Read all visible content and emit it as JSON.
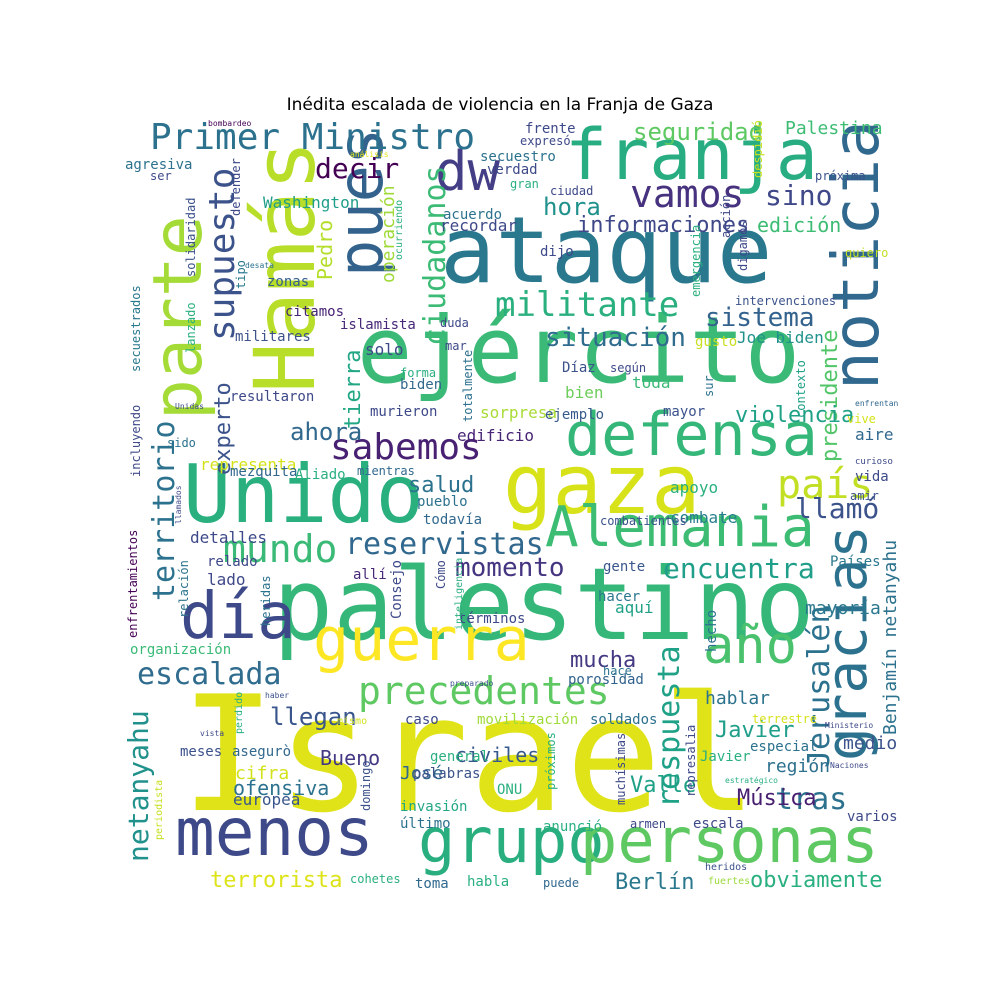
{
  "title": "Inédita escalada de violencia en la Franja de Gaza",
  "words": [
    {
      "text": "Israel",
      "color": "#dfe318"
    },
    {
      "text": "palestino",
      "color": "#35b779"
    },
    {
      "text": "ataque",
      "color": "#2a788e"
    },
    {
      "text": "ejército",
      "color": "#3aba76"
    },
    {
      "text": "Hamás",
      "color": "#b8de29"
    },
    {
      "text": "Unido",
      "color": "#2ab07f"
    },
    {
      "text": "gaza",
      "color": "#d8e219"
    },
    {
      "text": "franja",
      "color": "#27ad81"
    },
    {
      "text": "parte",
      "color": "#a5db36"
    },
    {
      "text": "noticia",
      "color": "#31688e"
    },
    {
      "text": "menos",
      "color": "#3e4989"
    },
    {
      "text": "grupo",
      "color": "#29af7f"
    },
    {
      "text": "personas",
      "color": "#5ec962"
    },
    {
      "text": "defensa",
      "color": "#35b779"
    },
    {
      "text": "guerra",
      "color": "#fde725"
    },
    {
      "text": "Alemania",
      "color": "#3dbc74"
    },
    {
      "text": "gracias",
      "color": "#2c728e"
    },
    {
      "text": "pues",
      "color": "#33638d"
    },
    {
      "text": "día",
      "color": "#3e4989"
    },
    {
      "text": "dw",
      "color": "#433e85"
    },
    {
      "text": "Primer Ministro",
      "color": "#2c728e"
    },
    {
      "text": "año",
      "color": "#4ac16d"
    },
    {
      "text": "sabemos",
      "color": "#482173"
    },
    {
      "text": "precedentes",
      "color": "#5ec962"
    },
    {
      "text": "mundo",
      "color": "#3aba76"
    },
    {
      "text": "país",
      "color": "#c2df23"
    },
    {
      "text": "supuesto",
      "color": "#3b528b"
    },
    {
      "text": "territorio",
      "color": "#2c728e"
    },
    {
      "text": "vamos",
      "color": "#46327e"
    },
    {
      "text": "militante",
      "color": "#2ab07f"
    },
    {
      "text": "escalada",
      "color": "#2f6c8e"
    },
    {
      "text": "reservistas",
      "color": "#31688e"
    },
    {
      "text": "netanyahu",
      "color": "#21918c"
    },
    {
      "text": "encuentra",
      "color": "#1f9e89"
    },
    {
      "text": "ciudadanos",
      "color": "#3bbb75"
    },
    {
      "text": "respuesta",
      "color": "#1fa187"
    },
    {
      "text": "Jerusalén",
      "color": "#2c728e"
    },
    {
      "text": "tras",
      "color": "#2c728e"
    },
    {
      "text": "momento",
      "color": "#453581"
    },
    {
      "text": "decir",
      "color": "#440154"
    },
    {
      "text": "sino",
      "color": "#3f4889"
    },
    {
      "text": "situación",
      "color": "#2f6c8e"
    },
    {
      "text": "sistema",
      "color": "#33638d"
    },
    {
      "text": "llamó",
      "color": "#3b528b"
    },
    {
      "text": "seguridad",
      "color": "#5ec962"
    },
    {
      "text": "experto",
      "color": "#3b528b"
    },
    {
      "text": "presidente",
      "color": "#52c569"
    },
    {
      "text": "ahora",
      "color": "#31688e"
    },
    {
      "text": "llegan",
      "color": "#39568c"
    },
    {
      "text": "informaciones",
      "color": "#3f4889"
    },
    {
      "text": "hora",
      "color": "#21918c"
    },
    {
      "text": "violencia",
      "color": "#1fa187"
    },
    {
      "text": "mucha",
      "color": "#443983"
    },
    {
      "text": "terrorista",
      "color": "#dde318"
    },
    {
      "text": "obviamente",
      "color": "#2ab07f"
    },
    {
      "text": "Berlín",
      "color": "#2a788e"
    },
    {
      "text": "Benjamín netanyahu",
      "color": "#2c728e"
    },
    {
      "text": "Javier",
      "color": "#1f9e89"
    },
    {
      "text": "Música",
      "color": "#481f70"
    },
    {
      "text": "operación",
      "color": "#a0da39"
    },
    {
      "text": "Pedro",
      "color": "#b5de2b"
    },
    {
      "text": "Palestina",
      "color": "#3dbc74"
    },
    {
      "text": "salud",
      "color": "#2c728e"
    },
    {
      "text": "edición",
      "color": "#3dbc74"
    },
    {
      "text": "Washington",
      "color": "#1f9e89"
    },
    {
      "text": "tierra",
      "color": "#22a785"
    },
    {
      "text": "representa",
      "color": "#d5e21a"
    },
    {
      "text": "Valle",
      "color": "#1fa187"
    },
    {
      "text": "cifra",
      "color": "#d2e21b"
    },
    {
      "text": "ofensiva",
      "color": "#2c728e"
    },
    {
      "text": "europea",
      "color": "#39568c"
    },
    {
      "text": "Bueno",
      "color": "#443983"
    },
    {
      "text": "civiles",
      "color": "#375a8c"
    },
    {
      "text": "José",
      "color": "#31688e"
    },
    {
      "text": "medio",
      "color": "#3b528b"
    },
    {
      "text": "región",
      "color": "#2d708e"
    },
    {
      "text": "hablar",
      "color": "#2c728e"
    },
    {
      "text": "mayoría",
      "color": "#2a788e"
    },
    {
      "text": "Países",
      "color": "#2a788e"
    },
    {
      "text": "combate",
      "color": "#277f8e"
    },
    {
      "text": "apoyo",
      "color": "#2ab07f"
    },
    {
      "text": "mayor",
      "color": "#3b528b"
    },
    {
      "text": "aire",
      "color": "#31688e"
    },
    {
      "text": "toda",
      "color": "#3aba76"
    },
    {
      "text": "bien",
      "color": "#6ccd5a"
    },
    {
      "text": "Díaz",
      "color": "#3b528b"
    },
    {
      "text": "biden",
      "color": "#31688e"
    },
    {
      "text": "Joe biden",
      "color": "#20928c"
    },
    {
      "text": "gusto",
      "color": "#c8e020"
    },
    {
      "text": "sorpresa",
      "color": "#a8db34"
    },
    {
      "text": "ejemplo",
      "color": "#375a8c"
    },
    {
      "text": "edificio",
      "color": "#482475"
    },
    {
      "text": "totalmente",
      "color": "#2d708e"
    },
    {
      "text": "solo",
      "color": "#3e4989"
    },
    {
      "text": "islamista",
      "color": "#482878"
    },
    {
      "text": "zonas",
      "color": "#34608d"
    },
    {
      "text": "citamos",
      "color": "#482475"
    },
    {
      "text": "militares",
      "color": "#3b528b"
    },
    {
      "text": "resultaron",
      "color": "#3e4989"
    },
    {
      "text": "murieron",
      "color": "#3e4989"
    },
    {
      "text": "mezquita",
      "color": "#31688e"
    },
    {
      "text": "Aliado",
      "color": "#2ab07f"
    },
    {
      "text": "mientras",
      "color": "#31688e"
    },
    {
      "text": "pueblo",
      "color": "#2c728e"
    },
    {
      "text": "todavía",
      "color": "#31688e"
    },
    {
      "text": "detalles",
      "color": "#3e4989"
    },
    {
      "text": "lado",
      "color": "#3f4889"
    },
    {
      "text": "relado",
      "color": "#3f4889"
    },
    {
      "text": "allí",
      "color": "#482878"
    },
    {
      "text": "aquí",
      "color": "#1fa187"
    },
    {
      "text": "términos",
      "color": "#3e4989"
    },
    {
      "text": "organización",
      "color": "#3aba76"
    },
    {
      "text": "hacer",
      "color": "#2a788e"
    },
    {
      "text": "gente",
      "color": "#39568c"
    },
    {
      "text": "porosidad",
      "color": "#33638d"
    },
    {
      "text": "caso",
      "color": "#3e4989"
    },
    {
      "text": "movilización",
      "color": "#9fda3a"
    },
    {
      "text": "soldados",
      "color": "#2d708e"
    },
    {
      "text": "general",
      "color": "#2ab07f"
    },
    {
      "text": "palabras",
      "color": "#3b528b"
    },
    {
      "text": "invasión",
      "color": "#22a785"
    },
    {
      "text": "último",
      "color": "#2c728e"
    },
    {
      "text": "ONU",
      "color": "#2ab07f"
    },
    {
      "text": "anunció",
      "color": "#2ab07f"
    },
    {
      "text": "armen",
      "color": "#3e4989"
    },
    {
      "text": "escala",
      "color": "#3e4989"
    },
    {
      "text": "varios",
      "color": "#3e4989"
    },
    {
      "text": "cohetes",
      "color": "#2ab07f"
    },
    {
      "text": "toma",
      "color": "#31688e"
    },
    {
      "text": "habla",
      "color": "#2ab07f"
    },
    {
      "text": "puede",
      "color": "#31688e"
    },
    {
      "text": "heridos",
      "color": "#3b528b"
    },
    {
      "text": "fuertes",
      "color": "#9bd93c"
    },
    {
      "text": "combatientes",
      "color": "#3b528b"
    },
    {
      "text": "vive",
      "color": "#d5e21a"
    },
    {
      "text": "vida",
      "color": "#3e4989"
    },
    {
      "text": "amir",
      "color": "#3b528b"
    },
    {
      "text": "curioso",
      "color": "#3e4989"
    },
    {
      "text": "enfrentan",
      "color": "#31688e"
    },
    {
      "text": "contexto",
      "color": "#1fa187"
    },
    {
      "text": "según",
      "color": "#3e4989"
    },
    {
      "text": "sur",
      "color": "#2c728e"
    },
    {
      "text": "intervenciones",
      "color": "#3b528b"
    },
    {
      "text": "quiero",
      "color": "#c2df23"
    },
    {
      "text": "emergencia",
      "color": "#2ab07f"
    },
    {
      "text": "acción",
      "color": "#3e4989"
    },
    {
      "text": "digamos",
      "color": "#3e4989"
    },
    {
      "text": "próxima",
      "color": "#3b528b"
    },
    {
      "text": "despidió",
      "color": "#cae11f"
    },
    {
      "text": "dijo",
      "color": "#3e4989"
    },
    {
      "text": "ciudad",
      "color": "#3e4989"
    },
    {
      "text": "acuerdo",
      "color": "#2c728e"
    },
    {
      "text": "recordar",
      "color": "#3e4989"
    },
    {
      "text": "verdad",
      "color": "#3e4989"
    },
    {
      "text": "secuestro",
      "color": "#2c728e"
    },
    {
      "text": "gran",
      "color": "#2ab07f"
    },
    {
      "text": "ocurriendo",
      "color": "#2ab07f"
    },
    {
      "text": "frente",
      "color": "#3e4989"
    },
    {
      "text": "expresó",
      "color": "#3e4989"
    },
    {
      "text": "análisis",
      "color": "#e5e419"
    },
    {
      "text": "bombardeo",
      "color": "#440154"
    },
    {
      "text": "agresiva",
      "color": "#2c728e"
    },
    {
      "text": "ser",
      "color": "#3e4989"
    },
    {
      "text": "defender",
      "color": "#3e4989"
    },
    {
      "text": "solidaridad",
      "color": "#3b528b"
    },
    {
      "text": "tipo",
      "color": "#2a788e"
    },
    {
      "text": "desata",
      "color": "#2c728e"
    },
    {
      "text": "secuestrados",
      "color": "#2a788e"
    },
    {
      "text": "lanzado",
      "color": "#2ab07f"
    },
    {
      "text": "incluyendo",
      "color": "#3e4989"
    },
    {
      "text": "Unidas",
      "color": "#3e4989"
    },
    {
      "text": "sido",
      "color": "#2c728e"
    },
    {
      "text": "llamados",
      "color": "#3e4989"
    },
    {
      "text": "relación",
      "color": "#2c728e"
    },
    {
      "text": "enfrentamientos",
      "color": "#440154"
    },
    {
      "text": "heridas",
      "color": "#2c728e"
    },
    {
      "text": "Consejo",
      "color": "#3e4989"
    },
    {
      "text": "inteligencia",
      "color": "#2ab07f"
    },
    {
      "text": "Cómo",
      "color": "#3e4989"
    },
    {
      "text": "preparado",
      "color": "#3b528b"
    },
    {
      "text": "haber",
      "color": "#3b528b"
    },
    {
      "text": "perdido",
      "color": "#2ab07f"
    },
    {
      "text": "mismo",
      "color": "#d2e21b"
    },
    {
      "text": "asegurò",
      "color": "#31688e"
    },
    {
      "text": "meses",
      "color": "#3b528b"
    },
    {
      "text": "vista",
      "color": "#3e4989"
    },
    {
      "text": "periodista",
      "color": "#c8e020"
    },
    {
      "text": "domingo",
      "color": "#3b528b"
    },
    {
      "text": "próximos",
      "color": "#2ab07f"
    },
    {
      "text": "muchísimas",
      "color": "#3e4989"
    },
    {
      "text": "hace",
      "color": "#2c728e"
    },
    {
      "text": "hecho",
      "color": "#2c728e"
    },
    {
      "text": "represalia",
      "color": "#3e4989"
    },
    {
      "text": "especial",
      "color": "#2c728e"
    },
    {
      "text": "terrestre",
      "color": "#d5e21a"
    },
    {
      "text": "Ministerio",
      "color": "#3e4989"
    },
    {
      "text": "Naciones",
      "color": "#3e4989"
    },
    {
      "text": "estratégico",
      "color": "#2ab07f"
    },
    {
      "text": "duda",
      "color": "#3e4989"
    },
    {
      "text": "mar",
      "color": "#3e4989"
    },
    {
      "text": "forma",
      "color": "#2ab07f"
    },
    {
      "text": "Javier",
      "color": "#2ab07f"
    }
  ]
}
